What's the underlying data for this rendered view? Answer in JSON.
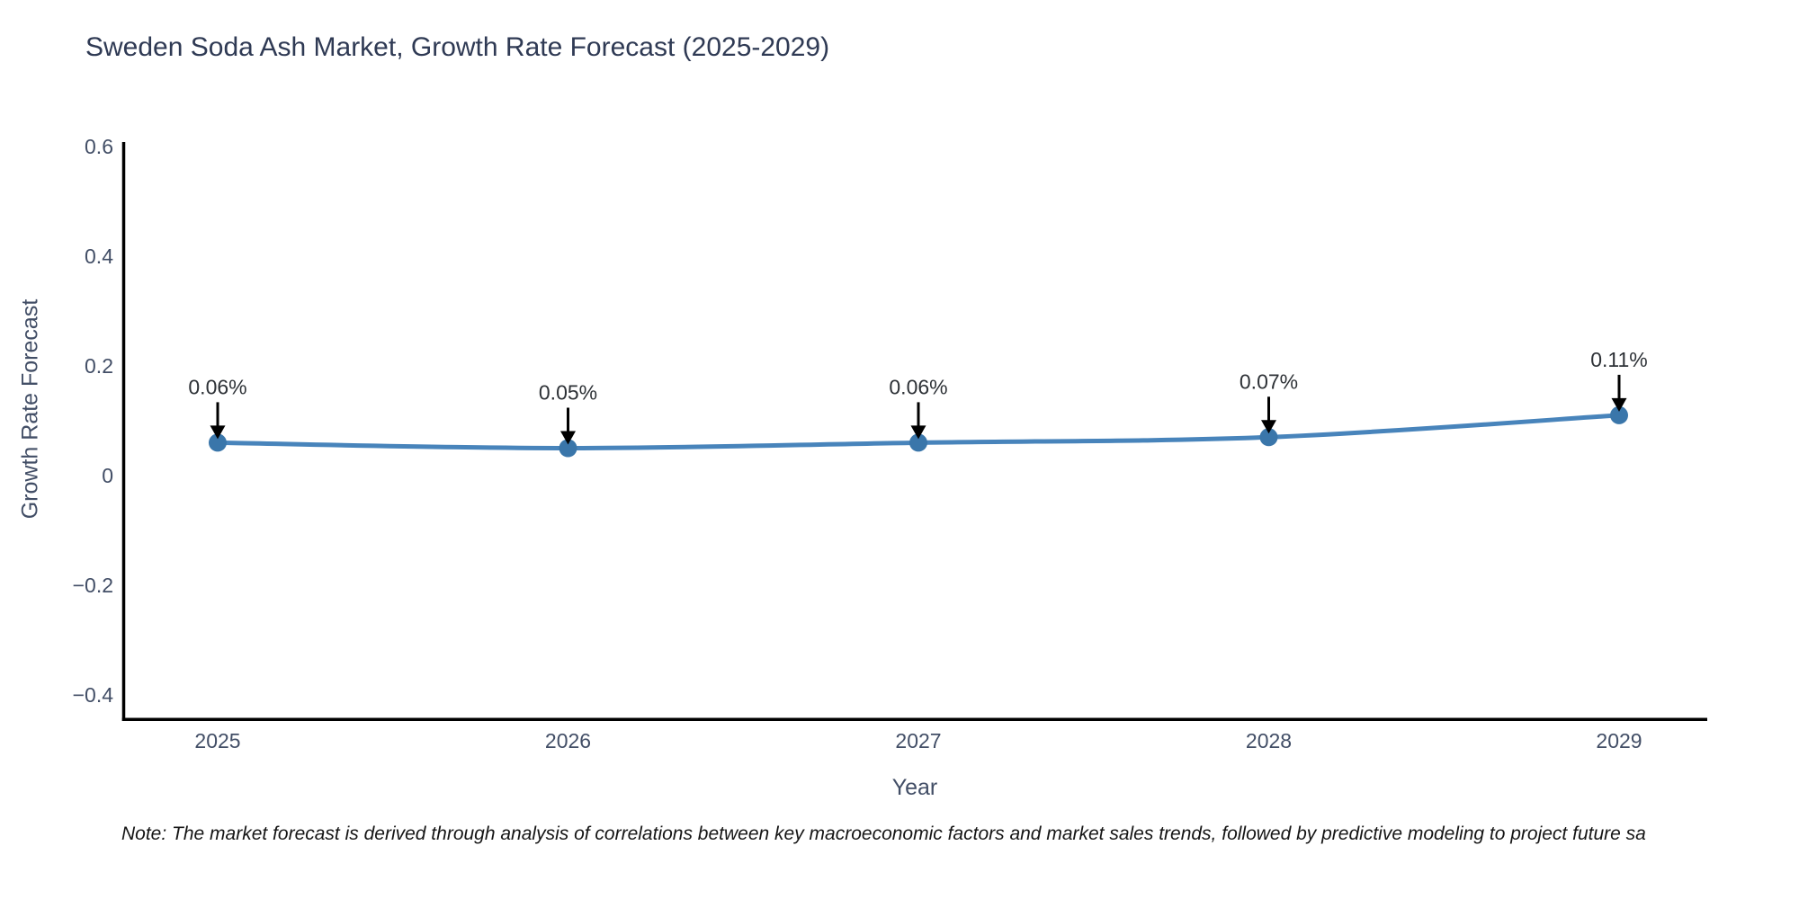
{
  "page": {
    "background": "#ffffff"
  },
  "chart_data": {
    "type": "line",
    "title": "Sweden Soda Ash Market, Growth Rate Forecast (2025-2029)",
    "xlabel": "Year",
    "ylabel": "Growth Rate Forecast",
    "x": [
      2025,
      2026,
      2027,
      2028,
      2029
    ],
    "series": [
      {
        "name": "Growth Rate Forecast",
        "values": [
          0.06,
          0.05,
          0.06,
          0.07,
          0.11
        ]
      }
    ],
    "point_labels": [
      "0.06%",
      "0.05%",
      "0.06%",
      "0.07%",
      "0.11%"
    ],
    "xtick_labels": [
      "2025",
      "2026",
      "2027",
      "2028",
      "2029"
    ],
    "yticks": [
      0.6,
      0.4,
      0.2,
      0,
      -0.2,
      -0.4
    ],
    "ytick_labels": [
      "0.6",
      "0.4",
      "0.2",
      "0",
      "−0.2",
      "−0.4"
    ],
    "ylim": [
      -0.445,
      0.605
    ],
    "grid": false,
    "legend": "none",
    "line_color": "#4884bb",
    "marker_color": "#3a76aa",
    "axis_color": "#000000",
    "tick_color": "#424e66",
    "title_color": "#2f3a54",
    "annotation_text_color": "#2d3136",
    "annotation_arrow_color": "#000000",
    "note": "Note: The market forecast is derived through analysis of correlations between key macroeconomic factors and market sales trends, followed by predictive modeling to project future sa"
  }
}
